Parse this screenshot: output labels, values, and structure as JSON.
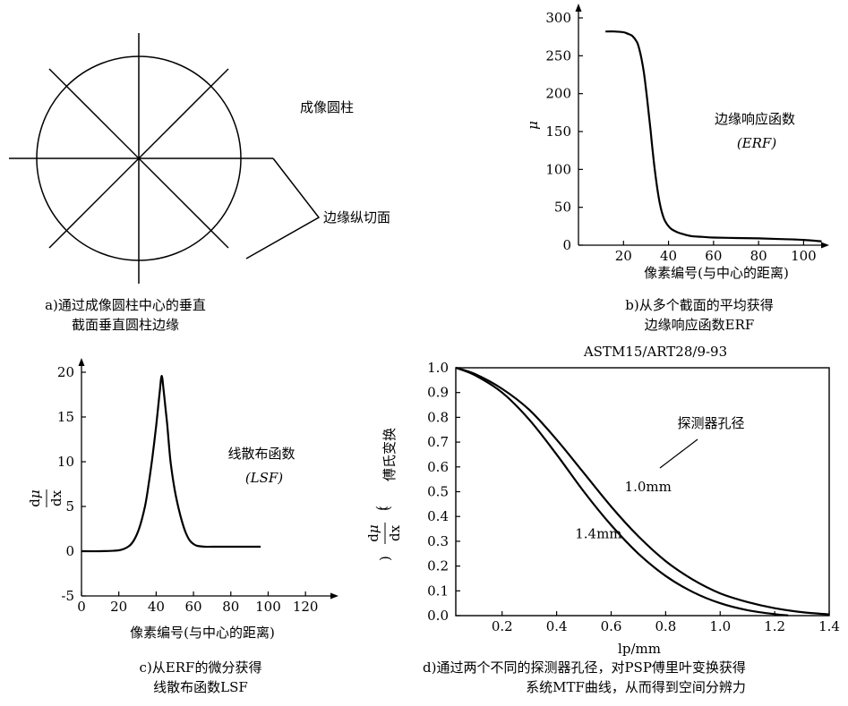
{
  "panel_a": {
    "label_cylinder": "成像圆柱",
    "label_section": "边缘纵切面",
    "caption_line1": "a)通过成像圆柱中心的垂直",
    "caption_line2": "截面垂直圆柱边缘"
  },
  "panel_b": {
    "caption_line1": "b)从多个截面的平均获得",
    "caption_line2": "边缘响应函数ERF"
  },
  "panel_c": {
    "caption_line1": "c)从ERF的微分获得",
    "caption_line2": "线散布函数LSF"
  },
  "panel_d": {
    "caption_line1": "d)通过两个不同的探测器孔径，对PSP傅里叶变换获得",
    "caption_line2": "系统MTF曲线，从而得到空间分辨力"
  },
  "chart_data": [
    {
      "type": "line",
      "panel": "b",
      "title": "边缘响应函数(ERF)",
      "xlabel": "像素编号(与中心的距离)",
      "ylabel": "μ",
      "xlim": [
        0,
        105
      ],
      "ylim": [
        0,
        300
      ],
      "xticks": [
        20,
        40,
        60,
        80,
        100
      ],
      "yticks": [
        0,
        50,
        100,
        150,
        200,
        250,
        300
      ],
      "annotation": [
        "边缘响应函数",
        "(ERF)"
      ],
      "series": [
        {
          "x": [
            12,
            16,
            20,
            22,
            24,
            26,
            27,
            28,
            29,
            30,
            31,
            32,
            33,
            34,
            35,
            36,
            37,
            38,
            39,
            40,
            41,
            42,
            44,
            46,
            50,
            55,
            60,
            70,
            80,
            90,
            100,
            108
          ],
          "y": [
            282,
            282,
            281,
            279,
            276,
            268,
            259,
            246,
            229,
            206,
            180,
            152,
            123,
            97,
            75,
            57,
            44,
            35,
            29,
            25,
            22,
            20,
            17,
            15,
            12,
            11,
            10,
            9.5,
            9,
            8,
            7,
            5
          ]
        }
      ]
    },
    {
      "type": "line",
      "panel": "c",
      "title": "线散布函数(LSF)",
      "xlabel": "像素编号(与中心的距离)",
      "ylabel": "dμ/dx",
      "xlim": [
        0,
        130
      ],
      "ylim": [
        -5,
        20
      ],
      "xticks": [
        0,
        20,
        40,
        60,
        80,
        100,
        120
      ],
      "yticks": [
        -5,
        0,
        5,
        10,
        15,
        20
      ],
      "annotation": [
        "线散布函数",
        "(LSF)"
      ],
      "series": [
        {
          "x": [
            0,
            10,
            20,
            25,
            28,
            31,
            34,
            36,
            38,
            40,
            41,
            42,
            43,
            44,
            45,
            46,
            47,
            48,
            50,
            52,
            54,
            56,
            58,
            60,
            62,
            66,
            70,
            80,
            96
          ],
          "y": [
            0,
            0,
            0.1,
            0.5,
            1.2,
            2.6,
            5,
            7.5,
            10.5,
            14,
            16,
            18,
            19.6,
            18,
            16,
            14,
            11.5,
            9.5,
            6.8,
            4.8,
            3.2,
            2,
            1.2,
            0.8,
            0.6,
            0.5,
            0.5,
            0.5,
            0.5
          ]
        }
      ]
    },
    {
      "type": "line",
      "panel": "d",
      "title": "ASTM15/ART28/9-93",
      "xlabel": "lp/mm",
      "ylabel": "傅氏变换",
      "ylabel_prefix": "(dμ/dx)",
      "xlim": [
        0.03,
        1.4
      ],
      "ylim": [
        0,
        1.0
      ],
      "xticks": [
        0.2,
        0.4,
        0.6,
        0.8,
        1.0,
        1.2,
        1.4
      ],
      "yticks": [
        0,
        0.1,
        0.2,
        0.3,
        0.4,
        0.5,
        0.6,
        0.7,
        0.8,
        0.9,
        1.0
      ],
      "legend_title": "探测器孔径",
      "series": [
        {
          "name": "1.0mm",
          "x": [
            0.03,
            0.1,
            0.2,
            0.3,
            0.4,
            0.5,
            0.6,
            0.7,
            0.8,
            0.9,
            1.0,
            1.1,
            1.2,
            1.3,
            1.4
          ],
          "y": [
            1.0,
            0.975,
            0.915,
            0.83,
            0.71,
            0.575,
            0.44,
            0.32,
            0.22,
            0.145,
            0.09,
            0.055,
            0.03,
            0.014,
            0.005
          ]
        },
        {
          "name": "1.4mm",
          "x": [
            0.03,
            0.1,
            0.2,
            0.3,
            0.4,
            0.5,
            0.6,
            0.7,
            0.8,
            0.9,
            1.0,
            1.1,
            1.2,
            1.25
          ],
          "y": [
            1.0,
            0.97,
            0.9,
            0.79,
            0.65,
            0.5,
            0.365,
            0.25,
            0.16,
            0.095,
            0.05,
            0.022,
            0.006,
            0.001
          ]
        }
      ]
    }
  ]
}
